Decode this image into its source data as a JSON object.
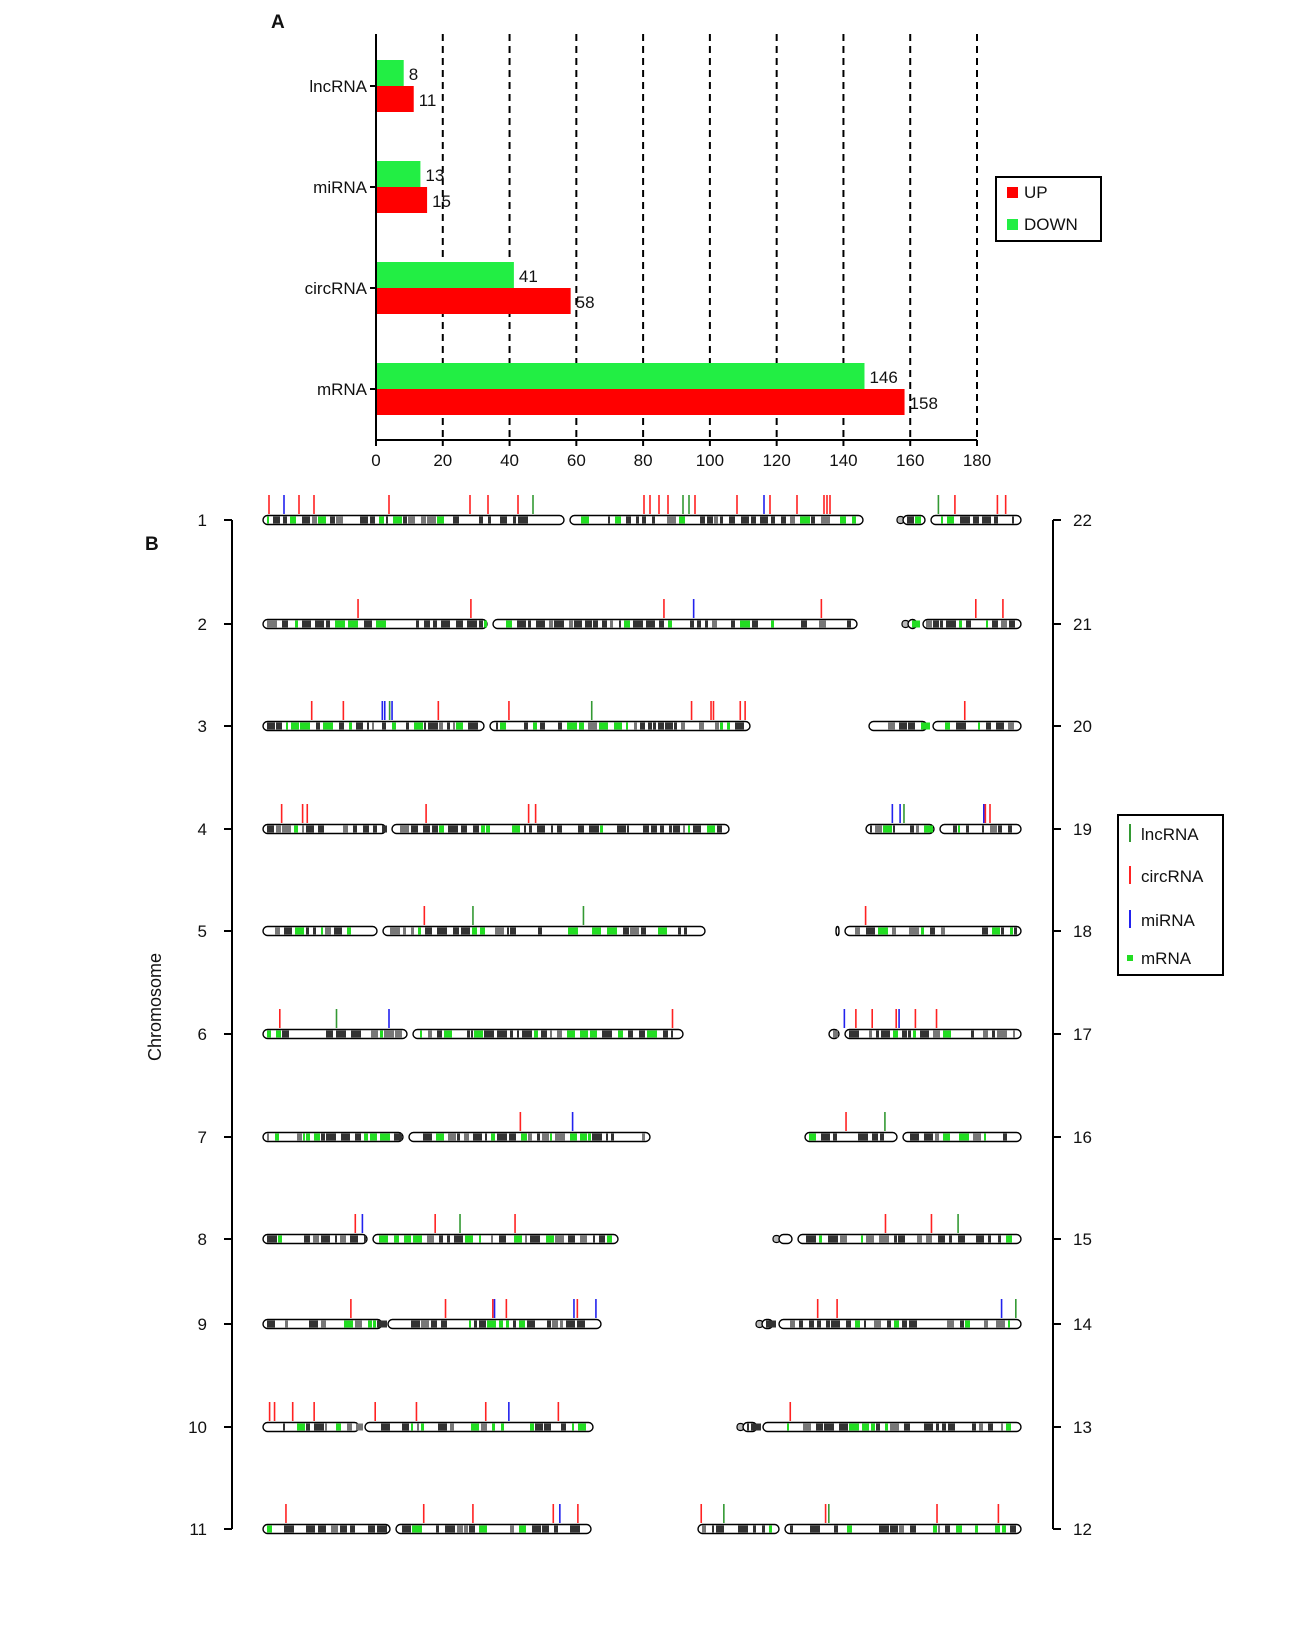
{
  "chart_data": [
    {
      "panel": "A",
      "type": "bar",
      "orientation": "horizontal",
      "title": "",
      "categories": [
        "lncRNA",
        "miRNA",
        "circRNA",
        "mRNA"
      ],
      "series": [
        {
          "name": "DOWN",
          "color": "#22ee44",
          "values": [
            8,
            13,
            41,
            146
          ]
        },
        {
          "name": "UP",
          "color": "#ff0000",
          "values": [
            11,
            15,
            58,
            158
          ]
        }
      ],
      "xlim": [
        0,
        180
      ],
      "xticks": [
        0,
        20,
        40,
        60,
        80,
        100,
        120,
        140,
        160,
        180
      ],
      "grid": "vertical dashed",
      "legend": {
        "position": "right",
        "entries": [
          "UP",
          "DOWN"
        ]
      }
    },
    {
      "panel": "B",
      "type": "ideogram",
      "ylabel": "Chromosome",
      "left_labels": [
        "1",
        "2",
        "3",
        "4",
        "5",
        "6",
        "7",
        "8",
        "9",
        "10",
        "11"
      ],
      "right_labels": [
        "22",
        "21",
        "20",
        "19",
        "18",
        "17",
        "16",
        "15",
        "14",
        "13",
        "12"
      ],
      "legend": {
        "position": "right",
        "entries": [
          {
            "label": "lncRNA",
            "color": "#339933",
            "symbol": "tick"
          },
          {
            "label": "circRNA",
            "color": "#ff2222",
            "symbol": "tick"
          },
          {
            "label": "miRNA",
            "color": "#2222ee",
            "symbol": "tick"
          },
          {
            "label": "mRNA",
            "color": "#22dd22",
            "symbol": "square"
          }
        ]
      },
      "chromosomes": [
        {
          "name": "1",
          "markers": [
            {
              "type": "circRNA",
              "pos": 0.01
            },
            {
              "type": "miRNA",
              "pos": 0.035
            },
            {
              "type": "circRNA",
              "pos": 0.06
            },
            {
              "type": "circRNA",
              "pos": 0.085
            },
            {
              "type": "circRNA",
              "pos": 0.21
            },
            {
              "type": "circRNA",
              "pos": 0.345
            },
            {
              "type": "circRNA",
              "pos": 0.375
            },
            {
              "type": "circRNA",
              "pos": 0.425
            },
            {
              "type": "lncRNA",
              "pos": 0.45
            },
            {
              "type": "circRNA",
              "pos": 0.635
            },
            {
              "type": "circRNA",
              "pos": 0.645
            },
            {
              "type": "circRNA",
              "pos": 0.66
            },
            {
              "type": "circRNA",
              "pos": 0.675
            },
            {
              "type": "lncRNA",
              "pos": 0.7
            },
            {
              "type": "lncRNA",
              "pos": 0.71
            },
            {
              "type": "circRNA",
              "pos": 0.72
            },
            {
              "type": "circRNA",
              "pos": 0.79
            },
            {
              "type": "miRNA",
              "pos": 0.835
            },
            {
              "type": "circRNA",
              "pos": 0.845
            },
            {
              "type": "circRNA",
              "pos": 0.89
            },
            {
              "type": "circRNA",
              "pos": 0.935
            },
            {
              "type": "circRNA",
              "pos": 0.94
            },
            {
              "type": "circRNA",
              "pos": 0.945
            }
          ]
        },
        {
          "name": "2",
          "markers": [
            {
              "type": "circRNA",
              "pos": 0.16
            },
            {
              "type": "circRNA",
              "pos": 0.35
            },
            {
              "type": "circRNA",
              "pos": 0.675
            },
            {
              "type": "miRNA",
              "pos": 0.725
            },
            {
              "type": "circRNA",
              "pos": 0.94
            }
          ]
        },
        {
          "name": "3",
          "markers": [
            {
              "type": "circRNA",
              "pos": 0.1
            },
            {
              "type": "circRNA",
              "pos": 0.165
            },
            {
              "type": "miRNA",
              "pos": 0.245
            },
            {
              "type": "miRNA",
              "pos": 0.25
            },
            {
              "type": "lncRNA",
              "pos": 0.26
            },
            {
              "type": "miRNA",
              "pos": 0.265
            },
            {
              "type": "circRNA",
              "pos": 0.36
            },
            {
              "type": "circRNA",
              "pos": 0.505
            },
            {
              "type": "lncRNA",
              "pos": 0.675
            },
            {
              "type": "circRNA",
              "pos": 0.88
            },
            {
              "type": "circRNA",
              "pos": 0.92
            },
            {
              "type": "circRNA",
              "pos": 0.925
            },
            {
              "type": "circRNA",
              "pos": 0.98
            },
            {
              "type": "circRNA",
              "pos": 0.99
            }
          ]
        },
        {
          "name": "4",
          "markers": [
            {
              "type": "circRNA",
              "pos": 0.04
            },
            {
              "type": "circRNA",
              "pos": 0.085
            },
            {
              "type": "circRNA",
              "pos": 0.095
            },
            {
              "type": "circRNA",
              "pos": 0.35
            },
            {
              "type": "circRNA",
              "pos": 0.57
            },
            {
              "type": "circRNA",
              "pos": 0.585
            }
          ]
        },
        {
          "name": "5",
          "markers": [
            {
              "type": "circRNA",
              "pos": 0.365
            },
            {
              "type": "lncRNA",
              "pos": 0.475
            },
            {
              "type": "lncRNA",
              "pos": 0.725
            }
          ]
        },
        {
          "name": "6",
          "markers": [
            {
              "type": "circRNA",
              "pos": 0.04
            },
            {
              "type": "lncRNA",
              "pos": 0.175
            },
            {
              "type": "miRNA",
              "pos": 0.3
            },
            {
              "type": "circRNA",
              "pos": 0.975
            }
          ]
        },
        {
          "name": "7",
          "markers": [
            {
              "type": "circRNA",
              "pos": 0.665
            },
            {
              "type": "miRNA",
              "pos": 0.8
            }
          ]
        },
        {
          "name": "8",
          "markers": [
            {
              "type": "circRNA",
              "pos": 0.26
            },
            {
              "type": "miRNA",
              "pos": 0.28
            },
            {
              "type": "circRNA",
              "pos": 0.485
            },
            {
              "type": "lncRNA",
              "pos": 0.555
            },
            {
              "type": "circRNA",
              "pos": 0.71
            }
          ]
        },
        {
          "name": "9",
          "markers": [
            {
              "type": "circRNA",
              "pos": 0.26
            },
            {
              "type": "circRNA",
              "pos": 0.54
            },
            {
              "type": "circRNA",
              "pos": 0.68
            },
            {
              "type": "miRNA",
              "pos": 0.685
            },
            {
              "type": "circRNA",
              "pos": 0.72
            },
            {
              "type": "miRNA",
              "pos": 0.92
            },
            {
              "type": "circRNA",
              "pos": 0.93
            },
            {
              "type": "miRNA",
              "pos": 0.985
            }
          ]
        },
        {
          "name": "10",
          "markers": [
            {
              "type": "circRNA",
              "pos": 0.02
            },
            {
              "type": "circRNA",
              "pos": 0.035
            },
            {
              "type": "circRNA",
              "pos": 0.09
            },
            {
              "type": "circRNA",
              "pos": 0.155
            },
            {
              "type": "circRNA",
              "pos": 0.34
            },
            {
              "type": "circRNA",
              "pos": 0.465
            },
            {
              "type": "circRNA",
              "pos": 0.675
            },
            {
              "type": "miRNA",
              "pos": 0.745
            },
            {
              "type": "circRNA",
              "pos": 0.895
            }
          ]
        },
        {
          "name": "11",
          "markers": [
            {
              "type": "circRNA",
              "pos": 0.07
            },
            {
              "type": "circRNA",
              "pos": 0.49
            },
            {
              "type": "circRNA",
              "pos": 0.64
            },
            {
              "type": "circRNA",
              "pos": 0.885
            },
            {
              "type": "miRNA",
              "pos": 0.905
            },
            {
              "type": "circRNA",
              "pos": 0.96
            }
          ]
        },
        {
          "name": "12",
          "markers": [
            {
              "type": "circRNA",
              "pos": 0.01
            },
            {
              "type": "lncRNA",
              "pos": 0.08
            },
            {
              "type": "circRNA",
              "pos": 0.395
            },
            {
              "type": "lncRNA",
              "pos": 0.405
            },
            {
              "type": "circRNA",
              "pos": 0.74
            },
            {
              "type": "circRNA",
              "pos": 0.93
            }
          ]
        },
        {
          "name": "13",
          "markers": [
            {
              "type": "circRNA",
              "pos": 0.17
            }
          ]
        },
        {
          "name": "14",
          "markers": [
            {
              "type": "circRNA",
              "pos": 0.215
            },
            {
              "type": "circRNA",
              "pos": 0.29
            },
            {
              "type": "miRNA",
              "pos": 0.925
            },
            {
              "type": "lncRNA",
              "pos": 0.98
            }
          ]
        },
        {
          "name": "15",
          "markers": [
            {
              "type": "circRNA",
              "pos": 0.44
            },
            {
              "type": "circRNA",
              "pos": 0.63
            },
            {
              "type": "lncRNA",
              "pos": 0.74
            }
          ]
        },
        {
          "name": "16",
          "markers": [
            {
              "type": "circRNA",
              "pos": 0.19
            },
            {
              "type": "lncRNA",
              "pos": 0.37
            }
          ]
        },
        {
          "name": "17",
          "markers": [
            {
              "type": "miRNA",
              "pos": 0.08
            },
            {
              "type": "circRNA",
              "pos": 0.14
            },
            {
              "type": "circRNA",
              "pos": 0.225
            },
            {
              "type": "circRNA",
              "pos": 0.35
            },
            {
              "type": "miRNA",
              "pos": 0.365
            },
            {
              "type": "circRNA",
              "pos": 0.45
            },
            {
              "type": "circRNA",
              "pos": 0.56
            }
          ]
        },
        {
          "name": "18",
          "markers": [
            {
              "type": "circRNA",
              "pos": 0.16
            }
          ]
        },
        {
          "name": "19",
          "markers": [
            {
              "type": "miRNA",
              "pos": 0.17
            },
            {
              "type": "miRNA",
              "pos": 0.22
            },
            {
              "type": "lncRNA",
              "pos": 0.245
            },
            {
              "type": "miRNA",
              "pos": 0.76
            },
            {
              "type": "circRNA",
              "pos": 0.77
            },
            {
              "type": "circRNA",
              "pos": 0.8
            }
          ]
        },
        {
          "name": "20",
          "markers": [
            {
              "type": "circRNA",
              "pos": 0.63
            }
          ]
        },
        {
          "name": "21",
          "markers": [
            {
              "type": "circRNA",
              "pos": 0.6
            },
            {
              "type": "circRNA",
              "pos": 0.84
            }
          ]
        },
        {
          "name": "22",
          "markers": [
            {
              "type": "lncRNA",
              "pos": 0.3
            },
            {
              "type": "circRNA",
              "pos": 0.44
            },
            {
              "type": "circRNA",
              "pos": 0.8
            },
            {
              "type": "circRNA",
              "pos": 0.87
            }
          ]
        }
      ]
    }
  ],
  "labels": {
    "panel_a": "A",
    "panel_b": "B",
    "b_ylabel": "Chromosome"
  },
  "colors": {
    "up": "#ff0000",
    "down": "#22ee44",
    "lncRNA": "#339933",
    "circRNA": "#ff2222",
    "miRNA": "#2222ee",
    "mRNA": "#22dd22"
  }
}
